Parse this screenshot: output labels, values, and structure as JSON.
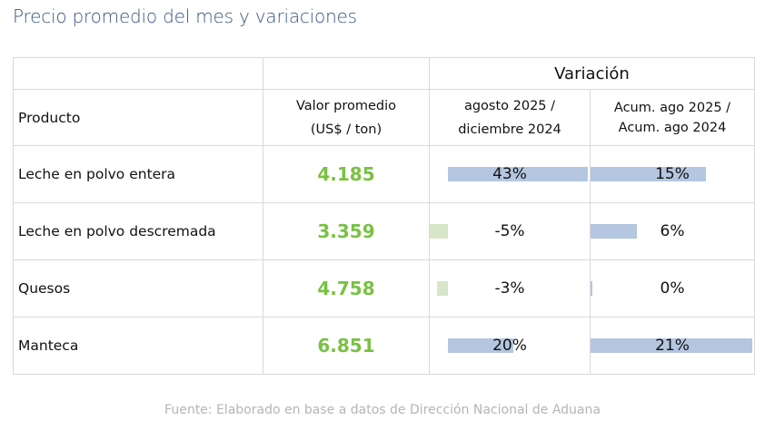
{
  "title": "Precio promedio del mes y variaciones",
  "table": {
    "variacion_header": "Variación",
    "col_producto": "Producto",
    "col_valor_line1": "Valor promedio",
    "col_valor_line2": "(US$ / ton)",
    "col_var1_line1": "agosto 2025 /",
    "col_var1_line2": "diciembre 2024",
    "col_var2_line1": "Acum. ago 2025 /",
    "col_var2_line2": "Acum. ago 2024",
    "rows": [
      {
        "producto": "Leche en polvo entera",
        "valor": "4.185",
        "var1": "43%",
        "var2": "15%",
        "var1_value": 0.43,
        "var2_value": 0.15
      },
      {
        "producto": "Leche en polvo descremada",
        "valor": "3.359",
        "var1": "-5%",
        "var2": "6%",
        "var1_value": -0.05,
        "var2_value": 0.06
      },
      {
        "producto": "Quesos",
        "valor": "4.758",
        "var1": "-3%",
        "var2": "0%",
        "var1_value": -0.03,
        "var2_value": 0.0
      },
      {
        "producto": "Manteca",
        "valor": "6.851",
        "var1": "20%",
        "var2": "21%",
        "var1_value": 0.2,
        "var2_value": 0.21
      }
    ]
  },
  "colors": {
    "title": "#3a5580",
    "value": "#7ac142",
    "bar_positive": "#b4c6e0",
    "bar_negative": "#d6e6c7"
  },
  "source": "Fuente: Elaborado en base a datos de Dirección Nacional de Aduana"
}
